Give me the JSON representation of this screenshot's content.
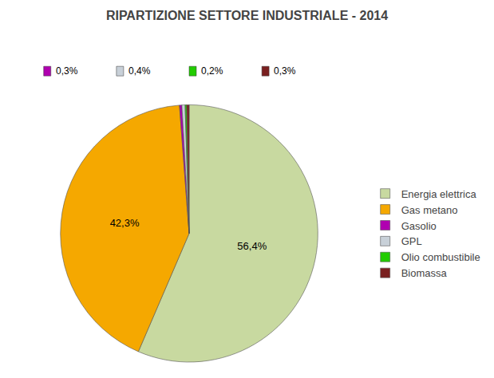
{
  "chart_data": {
    "type": "pie",
    "title": "RIPARTIZIONE SETTORE INDUSTRIALE - 2014",
    "categories": [
      "Energia elettrica",
      "Gas metano",
      "Gasolio",
      "GPL",
      "Olio combustibile",
      "Biomassa"
    ],
    "values": [
      56.4,
      42.3,
      0.3,
      0.4,
      0.2,
      0.3
    ],
    "value_labels": [
      "56,4%",
      "42,3%",
      "0,3%",
      "0,4%",
      "0,2%",
      "0,3%"
    ],
    "colors": [
      "#c8d9a0",
      "#f5a800",
      "#b000b0",
      "#c8d0d8",
      "#22cc00",
      "#7a2020"
    ],
    "data_labels": true,
    "legend": "right"
  }
}
